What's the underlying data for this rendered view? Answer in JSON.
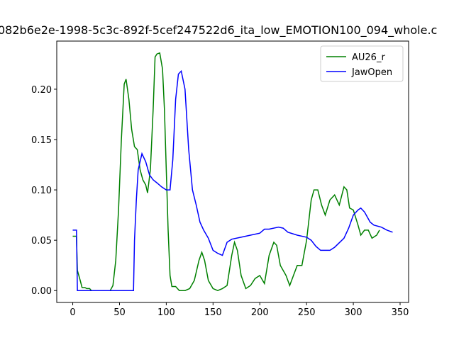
{
  "chart_data": {
    "type": "line",
    "title": "082b6e2e-1998-5c3c-892f-5cef247522d6_ita_low_EMOTION100_094_whole.c",
    "legend": "upper right",
    "xlim": [
      -17.1,
      359.1
    ],
    "xticks": [
      0,
      50,
      100,
      150,
      200,
      250,
      300,
      350
    ],
    "ylim": [
      -0.0118,
      0.2478
    ],
    "yticks": [
      {
        "value": 0,
        "label": "0.00"
      },
      {
        "value": 0.05,
        "label": "0.05"
      },
      {
        "value": 0.1,
        "label": "0.10"
      },
      {
        "value": 0.15,
        "label": "0.15"
      },
      {
        "value": 0.2,
        "label": "0.20"
      }
    ],
    "series": [
      {
        "name": "AU26_r",
        "color": "#008000",
        "x": [
          0,
          4,
          5,
          8,
          10,
          13,
          15,
          18,
          20,
          25,
          30,
          35,
          40,
          43,
          46,
          49,
          52,
          55,
          57,
          60,
          63,
          66,
          69,
          72,
          75,
          78,
          80,
          83,
          86,
          88,
          90,
          93,
          96,
          98,
          100,
          102,
          104,
          106,
          110,
          114,
          120,
          125,
          130,
          135,
          138,
          141,
          145,
          150,
          155,
          160,
          165,
          170,
          173,
          176,
          180,
          185,
          190,
          195,
          200,
          205,
          210,
          215,
          218,
          222,
          228,
          232,
          236,
          240,
          245,
          250,
          255,
          258,
          262,
          266,
          270,
          275,
          280,
          285,
          290,
          293,
          296,
          300,
          305,
          308,
          312,
          316,
          320,
          325,
          328
        ],
        "values": [
          0.054,
          0.054,
          0.02,
          0.01,
          0.003,
          0.003,
          0.002,
          0.002,
          0,
          0,
          0,
          0,
          0,
          0.005,
          0.03,
          0.08,
          0.15,
          0.205,
          0.21,
          0.19,
          0.16,
          0.143,
          0.14,
          0.12,
          0.11,
          0.105,
          0.097,
          0.12,
          0.18,
          0.232,
          0.235,
          0.236,
          0.22,
          0.18,
          0.12,
          0.06,
          0.015,
          0.004,
          0.004,
          0,
          0,
          0.002,
          0.01,
          0.03,
          0.038,
          0.03,
          0.01,
          0.002,
          0,
          0.002,
          0.005,
          0.035,
          0.048,
          0.04,
          0.015,
          0.002,
          0.005,
          0.012,
          0.015,
          0.007,
          0.035,
          0.048,
          0.045,
          0.025,
          0.015,
          0.005,
          0.015,
          0.025,
          0.025,
          0.05,
          0.09,
          0.1,
          0.1,
          0.085,
          0.075,
          0.09,
          0.095,
          0.085,
          0.103,
          0.1,
          0.082,
          0.08,
          0.065,
          0.055,
          0.06,
          0.06,
          0.052,
          0.055,
          0.06
        ]
      },
      {
        "name": "JawOpen",
        "color": "#0000ff",
        "x": [
          0,
          4,
          5,
          10,
          20,
          30,
          40,
          50,
          60,
          64,
          65,
          66,
          68,
          70,
          74,
          78,
          82,
          86,
          90,
          95,
          100,
          104,
          107,
          110,
          113,
          116,
          120,
          124,
          128,
          132,
          136,
          140,
          145,
          150,
          155,
          160,
          165,
          170,
          180,
          190,
          200,
          205,
          210,
          220,
          225,
          230,
          240,
          250,
          255,
          260,
          265,
          275,
          280,
          290,
          295,
          300,
          305,
          308,
          312,
          318,
          322,
          330,
          336,
          342
        ],
        "values": [
          0.06,
          0.06,
          0,
          0,
          0,
          0,
          0,
          0,
          0,
          0,
          0,
          0.05,
          0.09,
          0.12,
          0.136,
          0.128,
          0.115,
          0.11,
          0.107,
          0.103,
          0.1,
          0.1,
          0.13,
          0.19,
          0.215,
          0.218,
          0.2,
          0.14,
          0.1,
          0.085,
          0.068,
          0.06,
          0.052,
          0.04,
          0.037,
          0.035,
          0.048,
          0.051,
          0.053,
          0.055,
          0.057,
          0.061,
          0.061,
          0.063,
          0.062,
          0.058,
          0.055,
          0.053,
          0.05,
          0.044,
          0.04,
          0.04,
          0.043,
          0.052,
          0.062,
          0.075,
          0.08,
          0.082,
          0.078,
          0.068,
          0.065,
          0.063,
          0.06,
          0.058
        ]
      }
    ]
  }
}
